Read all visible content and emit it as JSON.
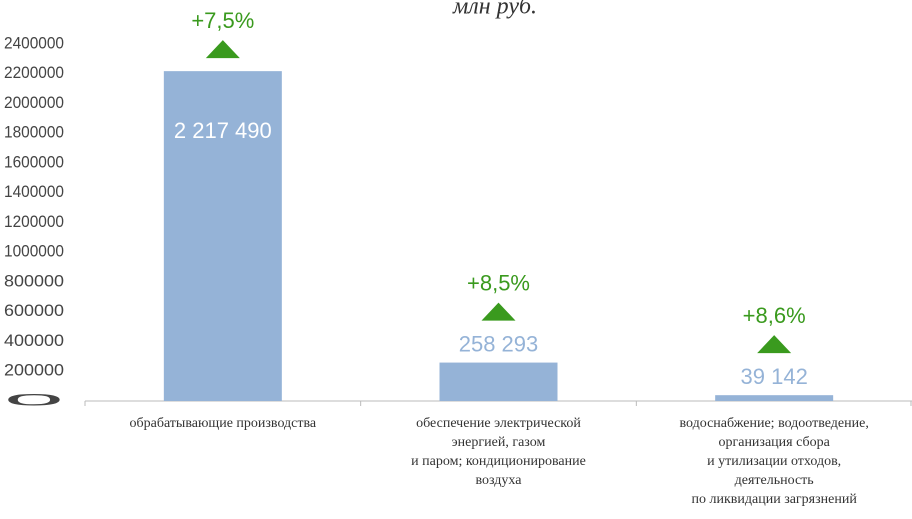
{
  "chart_data": {
    "type": "bar",
    "subtitle": "млн руб.",
    "categories": [
      [
        "обрабатывающие производства"
      ],
      [
        "обеспечение электрической",
        "энергией, газом",
        "и паром; кондиционирование",
        "воздуха"
      ],
      [
        "водоснабжение; водоотведение,",
        "организация сбора",
        "и утилизации отходов,",
        "деятельность",
        "по ликвидации загрязнений"
      ]
    ],
    "values": [
      2217490,
      258293,
      39142
    ],
    "value_labels": [
      "2 217 490",
      "258 293",
      "39 142"
    ],
    "changes": [
      "+7,5%",
      "+8,5%",
      "+8,6%"
    ],
    "color": "#95b3d7",
    "change_color": "#3a9a1e",
    "ylim": [
      0,
      2400000
    ],
    "yticks": [
      0,
      200000,
      400000,
      600000,
      800000,
      1000000,
      1200000,
      1400000,
      1600000,
      1800000,
      2000000,
      2200000,
      2400000
    ],
    "grid": false
  }
}
